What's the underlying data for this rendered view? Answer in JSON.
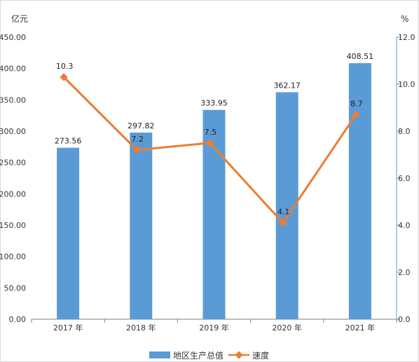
{
  "chart_data": {
    "type": "bar",
    "categories": [
      "2017 年",
      "2018 年",
      "2019 年",
      "2020 年",
      "2021 年"
    ],
    "series": [
      {
        "name": "地区生产总值",
        "type": "bar",
        "axis": "left",
        "values": [
          273.56,
          297.82,
          333.95,
          362.17,
          408.51
        ],
        "labels": [
          "273.56",
          "297.82",
          "333.95",
          "362.17",
          "408.51"
        ],
        "color": "#5b9bd5"
      },
      {
        "name": "速度",
        "type": "line",
        "axis": "right",
        "values": [
          10.3,
          7.2,
          7.5,
          4.1,
          8.7
        ],
        "labels": [
          "10.3",
          "7.2",
          "7.5",
          "4.1",
          "8.7"
        ],
        "color": "#ed7d31"
      }
    ],
    "y_left": {
      "unit": "亿元",
      "ylim": [
        0,
        450
      ],
      "ticks": [
        "0.00",
        "50.00",
        "100.00",
        "150.00",
        "200.00",
        "250.00",
        "300.00",
        "350.00",
        "400.00",
        "450.00"
      ]
    },
    "y_right": {
      "unit": "%",
      "ylim": [
        0,
        12
      ],
      "ticks": [
        "0.0",
        "2.0",
        "4.0",
        "6.0",
        "8.0",
        "10.0",
        "12.0"
      ]
    },
    "grid": false,
    "legend_position": "bottom-center"
  }
}
